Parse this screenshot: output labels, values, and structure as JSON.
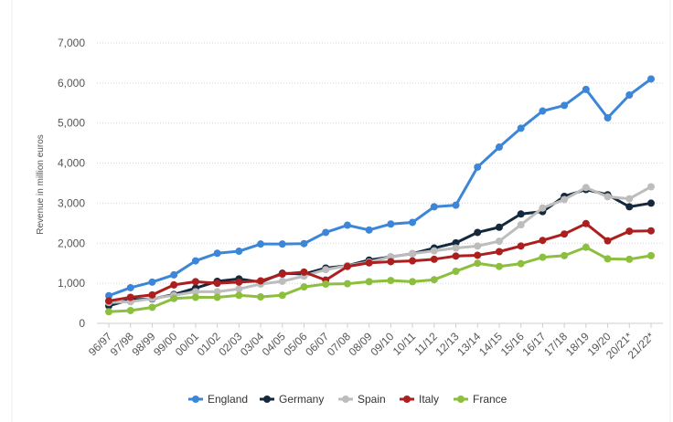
{
  "chart_data": {
    "type": "line",
    "title": "",
    "xlabel": "",
    "ylabel": "Revenue in million euros",
    "ylim": [
      0,
      7000
    ],
    "yticks": [
      0,
      1000,
      2000,
      3000,
      4000,
      5000,
      6000,
      7000
    ],
    "ytick_labels": [
      "0",
      "1,000",
      "2,000",
      "3,000",
      "4,000",
      "5,000",
      "6,000",
      "7,000"
    ],
    "grid": true,
    "legend_position": "bottom",
    "categories": [
      "96/97",
      "97/98",
      "98/99",
      "99/00",
      "00/01",
      "01/02",
      "02/03",
      "03/04",
      "04/05",
      "05/06",
      "06/07",
      "07/08",
      "08/09",
      "09/10",
      "10/11",
      "11/12",
      "12/13",
      "13/14",
      "14/15",
      "15/16",
      "16/17",
      "17/18",
      "18/19",
      "19/20",
      "20/21*",
      "21/22*"
    ],
    "series": [
      {
        "name": "England",
        "color": "#3b86d8",
        "values": [
          690,
          890,
          1030,
          1210,
          1560,
          1750,
          1800,
          1980,
          1980,
          1990,
          2270,
          2450,
          2330,
          2480,
          2520,
          2910,
          2950,
          3900,
          4400,
          4870,
          5300,
          5440,
          5840,
          5130,
          5700,
          6100
        ]
      },
      {
        "name": "Germany",
        "color": "#15293e",
        "values": [
          440,
          590,
          610,
          720,
          880,
          1050,
          1110,
          1030,
          1250,
          1230,
          1380,
          1440,
          1580,
          1660,
          1740,
          1880,
          2010,
          2270,
          2400,
          2730,
          2790,
          3170,
          3340,
          3210,
          2910,
          3000
        ]
      },
      {
        "name": "Spain",
        "color": "#bdbdbd",
        "values": [
          520,
          540,
          620,
          700,
          790,
          790,
          860,
          980,
          1050,
          1180,
          1340,
          1440,
          1530,
          1660,
          1740,
          1810,
          1880,
          1930,
          2050,
          2460,
          2880,
          3090,
          3390,
          3160,
          3110,
          3410
        ]
      },
      {
        "name": "Italy",
        "color": "#ad1e1e",
        "values": [
          560,
          650,
          710,
          960,
          1040,
          1000,
          1030,
          1060,
          1230,
          1280,
          1080,
          1420,
          1510,
          1540,
          1560,
          1600,
          1680,
          1700,
          1790,
          1930,
          2070,
          2230,
          2490,
          2060,
          2300,
          2310
        ]
      },
      {
        "name": "France",
        "color": "#8dbf3e",
        "values": [
          290,
          320,
          400,
          620,
          650,
          650,
          700,
          660,
          700,
          910,
          980,
          990,
          1040,
          1070,
          1040,
          1090,
          1300,
          1500,
          1420,
          1490,
          1650,
          1690,
          1900,
          1610,
          1600,
          1690
        ]
      }
    ]
  }
}
